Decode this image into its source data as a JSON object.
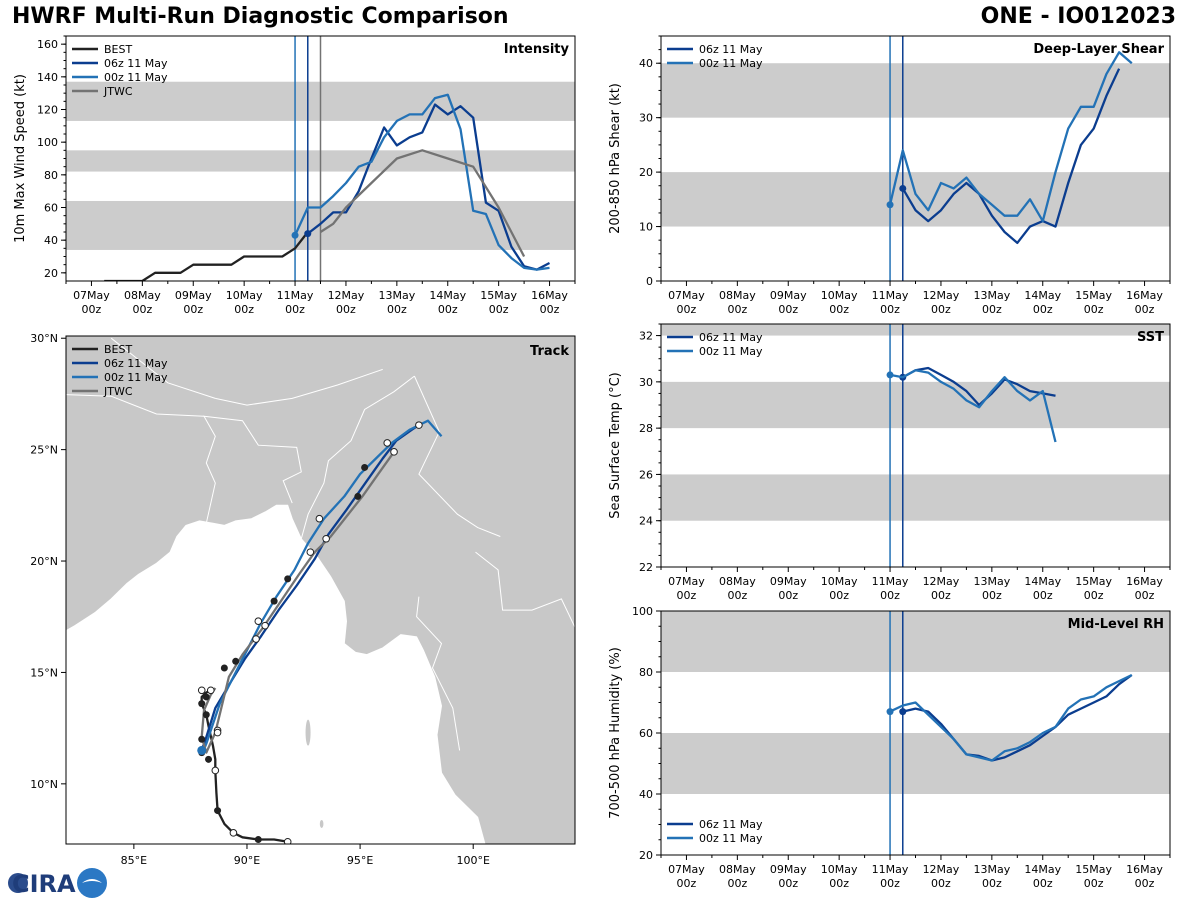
{
  "title_left": "HWRF Multi-Run Diagnostic Comparison",
  "title_right": "ONE - IO012023",
  "logo_text": "CIRA",
  "colors": {
    "best": "#222222",
    "run06": "#0b3d8f",
    "run00": "#2372b6",
    "jtwc": "#737373",
    "band": "#cccccc",
    "land": "#c8c8c8",
    "border": "#ffffff"
  },
  "legend": {
    "best": "BEST",
    "run06": "06z 11 May",
    "run00": "00z 11 May",
    "jtwc": "JTWC"
  },
  "time_ticks": [
    {
      "l1": "07May",
      "l2": "00z",
      "t": 0
    },
    {
      "l1": "08May",
      "l2": "00z",
      "t": 24
    },
    {
      "l1": "09May",
      "l2": "00z",
      "t": 48
    },
    {
      "l1": "10May",
      "l2": "00z",
      "t": 72
    },
    {
      "l1": "11May",
      "l2": "00z",
      "t": 96
    },
    {
      "l1": "12May",
      "l2": "00z",
      "t": 120
    },
    {
      "l1": "13May",
      "l2": "00z",
      "t": 144
    },
    {
      "l1": "14May",
      "l2": "00z",
      "t": 168
    },
    {
      "l1": "15May",
      "l2": "00z",
      "t": 192
    },
    {
      "l1": "16May",
      "l2": "00z",
      "t": 216
    }
  ],
  "chart_data": [
    {
      "type": "line",
      "id": "intensity",
      "title": "Intensity",
      "xlabel": "",
      "ylabel": "10m Max Wind Speed (kt)",
      "x_unit": "hours since 07 May 00z",
      "xlim": [
        -12,
        228
      ],
      "ylim": [
        15,
        165
      ],
      "yticks": [
        20,
        40,
        60,
        80,
        100,
        120,
        140,
        160
      ],
      "bands": [
        [
          34,
          64
        ],
        [
          82,
          95
        ],
        [
          113,
          137
        ]
      ],
      "vlines": [
        {
          "t": 96,
          "series": "run00"
        },
        {
          "t": 102,
          "series": "run06"
        },
        {
          "t": 108,
          "series": "jtwc"
        }
      ],
      "legend_keys": [
        "best",
        "run06",
        "run00",
        "jtwc"
      ],
      "series": [
        {
          "name": "BEST",
          "key": "best",
          "x": [
            6,
            12,
            18,
            24,
            30,
            36,
            42,
            48,
            54,
            60,
            66,
            72,
            78,
            84,
            90,
            96,
            102
          ],
          "y": [
            15,
            15,
            15,
            15,
            20,
            20,
            20,
            25,
            25,
            25,
            25,
            30,
            30,
            30,
            30,
            35,
            45
          ],
          "markers": []
        },
        {
          "name": "06z 11 May",
          "key": "run06",
          "x": [
            102,
            108,
            114,
            120,
            126,
            132,
            138,
            144,
            150,
            156,
            162,
            168,
            174,
            180,
            186,
            192,
            198,
            204,
            210,
            216
          ],
          "y": [
            44,
            50,
            57,
            57,
            70,
            90,
            109,
            98,
            103,
            106,
            123,
            117,
            122,
            115,
            63,
            58,
            36,
            24,
            22,
            26
          ],
          "markers": [
            {
              "x": 102,
              "y": 44
            }
          ]
        },
        {
          "name": "00z 11 May",
          "key": "run00",
          "x": [
            96,
            102,
            108,
            114,
            120,
            126,
            132,
            138,
            144,
            150,
            156,
            162,
            168,
            174,
            180,
            186,
            192,
            198,
            204,
            210,
            216
          ],
          "y": [
            43,
            60,
            60,
            67,
            75,
            85,
            88,
            103,
            113,
            117,
            117,
            127,
            129,
            108,
            58,
            56,
            37,
            29,
            23,
            22,
            23
          ],
          "markers": [
            {
              "x": 96,
              "y": 43
            }
          ]
        },
        {
          "name": "JTWC",
          "key": "jtwc",
          "x": [
            108,
            114,
            120,
            132,
            144,
            156,
            168,
            180,
            192,
            204
          ],
          "y": [
            45,
            50,
            60,
            75,
            90,
            95,
            90,
            85,
            60,
            30
          ],
          "markers": []
        }
      ]
    },
    {
      "type": "line",
      "id": "shear",
      "title": "Deep-Layer Shear",
      "xlabel": "",
      "ylabel": "200-850 hPa Shear (kt)",
      "x_unit": "hours since 07 May 00z",
      "xlim": [
        -12,
        228
      ],
      "ylim": [
        0,
        45
      ],
      "yticks": [
        0,
        10,
        20,
        30,
        40
      ],
      "bands": [
        [
          10,
          20
        ],
        [
          30,
          40
        ]
      ],
      "vlines": [
        {
          "t": 96,
          "series": "run00"
        },
        {
          "t": 102,
          "series": "run06"
        }
      ],
      "legend_keys": [
        "run06",
        "run00"
      ],
      "series": [
        {
          "name": "06z 11 May",
          "key": "run06",
          "x": [
            102,
            108,
            114,
            120,
            126,
            132,
            138,
            144,
            150,
            156,
            162,
            168,
            174,
            180,
            186,
            192,
            198,
            204
          ],
          "y": [
            17,
            13,
            11,
            13,
            16,
            18,
            16,
            12,
            9,
            7,
            10,
            11,
            10,
            18,
            25,
            28,
            34,
            39
          ],
          "markers": [
            {
              "x": 102,
              "y": 17
            }
          ]
        },
        {
          "name": "00z 11 May",
          "key": "run00",
          "x": [
            96,
            102,
            108,
            114,
            120,
            126,
            132,
            138,
            144,
            150,
            156,
            162,
            168,
            174,
            180,
            186,
            192,
            198,
            204,
            210
          ],
          "y": [
            14,
            24,
            16,
            13,
            18,
            17,
            19,
            16,
            14,
            12,
            12,
            15,
            11,
            20,
            28,
            32,
            32,
            38,
            42,
            40
          ],
          "markers": [
            {
              "x": 96,
              "y": 14
            }
          ]
        }
      ]
    },
    {
      "type": "line",
      "id": "sst",
      "title": "SST",
      "xlabel": "",
      "ylabel": "Sea Surface Temp (°C)",
      "x_unit": "hours since 07 May 00z",
      "xlim": [
        -12,
        228
      ],
      "ylim": [
        22,
        32.5
      ],
      "yticks": [
        22,
        24,
        26,
        28,
        30,
        32
      ],
      "bands": [
        [
          24,
          26
        ],
        [
          28,
          30
        ],
        [
          32,
          34
        ]
      ],
      "vlines": [
        {
          "t": 96,
          "series": "run00"
        },
        {
          "t": 102,
          "series": "run06"
        }
      ],
      "legend_keys": [
        "run06",
        "run00"
      ],
      "series": [
        {
          "name": "06z 11 May",
          "key": "run06",
          "x": [
            102,
            108,
            114,
            120,
            126,
            132,
            138,
            144,
            150,
            156,
            162,
            168,
            174
          ],
          "y": [
            30.2,
            30.5,
            30.6,
            30.3,
            30.0,
            29.6,
            29.0,
            29.5,
            30.1,
            29.9,
            29.6,
            29.5,
            29.4
          ],
          "markers": [
            {
              "x": 102,
              "y": 30.2
            }
          ]
        },
        {
          "name": "00z 11 May",
          "key": "run00",
          "x": [
            96,
            102,
            108,
            114,
            120,
            126,
            132,
            138,
            144,
            150,
            156,
            162,
            168,
            174
          ],
          "y": [
            30.3,
            30.2,
            30.5,
            30.4,
            30.0,
            29.7,
            29.2,
            28.9,
            29.6,
            30.2,
            29.6,
            29.2,
            29.6,
            27.4
          ],
          "markers": [
            {
              "x": 96,
              "y": 30.3
            }
          ]
        }
      ]
    },
    {
      "type": "line",
      "id": "rh",
      "title": "Mid-Level RH",
      "xlabel": "",
      "ylabel": "700-500 hPa Humidity (%)",
      "x_unit": "hours since 07 May 00z",
      "xlim": [
        -12,
        228
      ],
      "ylim": [
        20,
        100
      ],
      "yticks": [
        20,
        40,
        60,
        80,
        100
      ],
      "bands": [
        [
          40,
          60
        ],
        [
          80,
          100
        ]
      ],
      "vlines": [
        {
          "t": 96,
          "series": "run00"
        },
        {
          "t": 102,
          "series": "run06"
        }
      ],
      "legend_keys": [
        "run06",
        "run00"
      ],
      "legend_position": "bottom-left",
      "series": [
        {
          "name": "06z 11 May",
          "key": "run06",
          "x": [
            102,
            108,
            114,
            120,
            126,
            132,
            138,
            144,
            150,
            156,
            162,
            168,
            174,
            180,
            186,
            192,
            198,
            204,
            210
          ],
          "y": [
            67,
            68,
            67,
            63,
            58,
            53,
            52.5,
            51,
            52,
            54,
            56,
            59,
            62,
            66,
            68,
            70,
            72,
            76,
            79
          ],
          "markers": [
            {
              "x": 102,
              "y": 67
            }
          ]
        },
        {
          "name": "00z 11 May",
          "key": "run00",
          "x": [
            96,
            102,
            108,
            114,
            120,
            126,
            132,
            138,
            144,
            150,
            156,
            162,
            168,
            174,
            180,
            186,
            192,
            198,
            204,
            210
          ],
          "y": [
            67,
            69,
            70,
            66,
            62,
            58,
            53,
            52,
            51,
            54,
            55,
            57,
            60,
            62,
            68,
            71,
            72,
            75,
            77,
            79
          ],
          "markers": [
            {
              "x": 96,
              "y": 67
            }
          ]
        }
      ]
    },
    {
      "type": "scatter",
      "id": "track",
      "title": "Track",
      "xlabel": "",
      "ylabel": "",
      "xlim": [
        82,
        104.5
      ],
      "ylim": [
        7.3,
        30.1
      ],
      "xticks": [
        {
          "v": 85,
          "label": "85°E"
        },
        {
          "v": 90,
          "label": "90°E"
        },
        {
          "v": 95,
          "label": "95°E"
        },
        {
          "v": 100,
          "label": "100°E"
        }
      ],
      "yticks": [
        {
          "v": 10,
          "label": "10°N"
        },
        {
          "v": 15,
          "label": "15°N"
        },
        {
          "v": 20,
          "label": "20°N"
        },
        {
          "v": 25,
          "label": "25°N"
        },
        {
          "v": 30,
          "label": "30°N"
        }
      ],
      "legend_keys": [
        "best",
        "run06",
        "run00",
        "jtwc"
      ],
      "series": [
        {
          "name": "BEST",
          "key": "best",
          "lon": [
            91.8,
            91.2,
            90.5,
            89.8,
            89.4,
            89.0,
            88.7,
            88.65,
            88.6,
            88.6,
            88.5,
            88.3,
            88.2,
            88.0,
            88.0,
            88.2,
            88.4
          ],
          "lat": [
            7.4,
            7.5,
            7.5,
            7.6,
            7.8,
            8.2,
            8.8,
            9.6,
            10.6,
            11.1,
            11.7,
            12.6,
            13.1,
            13.6,
            13.9,
            14.1,
            14.2
          ],
          "open": [
            [
              91.8,
              7.4
            ],
            [
              89.4,
              7.8
            ],
            [
              88.6,
              10.6
            ],
            [
              88.4,
              14.2
            ],
            [
              88.0,
              14.2
            ]
          ],
          "filled": [
            [
              90.5,
              7.5
            ],
            [
              88.7,
              8.8
            ],
            [
              88.3,
              11.1
            ],
            [
              88.2,
              13.1
            ],
            [
              88.0,
              13.6
            ],
            [
              88.2,
              13.9
            ]
          ]
        },
        {
          "name": "06z 11 May",
          "key": "run06",
          "lon": [
            88.0,
            88.2,
            88.6,
            89.3,
            89.9,
            90.6,
            91.4,
            92.2,
            93.0,
            93.6,
            94.4,
            95.3,
            96.0,
            96.6,
            97.3,
            97.6
          ],
          "lat": [
            11.5,
            12.1,
            13.4,
            14.6,
            15.6,
            16.6,
            17.8,
            18.9,
            20.1,
            21.2,
            22.3,
            23.6,
            24.6,
            25.4,
            25.9,
            26.1
          ],
          "open": [
            [
              97.6,
              26.1
            ]
          ],
          "filled": [
            [
              88.0,
              11.5
            ],
            [
              89.0,
              15.2
            ],
            [
              89.5,
              15.5
            ],
            [
              91.2,
              18.2
            ],
            [
              91.8,
              19.2
            ],
            [
              95.2,
              24.2
            ]
          ]
        },
        {
          "name": "00z 11 May",
          "key": "run00",
          "lon": [
            88.0,
            88.2,
            88.4,
            88.8,
            89.4,
            90.0,
            90.6,
            91.3,
            92.1,
            92.7,
            93.4,
            94.3,
            95.0,
            95.7,
            96.4,
            97.2,
            98.0,
            98.6
          ],
          "lat": [
            11.3,
            11.8,
            12.4,
            13.6,
            14.8,
            16.0,
            17.2,
            18.4,
            19.6,
            20.8,
            21.9,
            22.9,
            23.9,
            24.6,
            25.3,
            25.9,
            26.3,
            25.6
          ],
          "open": [
            [
              88.7,
              12.4
            ],
            [
              90.5,
              17.3
            ],
            [
              93.2,
              21.9
            ],
            [
              96.2,
              25.3
            ]
          ],
          "filled": [
            [
              88.0,
              11.4
            ]
          ]
        },
        {
          "name": "JTWC",
          "key": "jtwc",
          "lon": [
            88.6,
            88.4,
            88.1,
            88.0,
            88.2,
            88.6,
            89.2,
            89.8,
            90.7,
            91.5,
            92.3,
            93.0,
            93.7,
            94.4,
            95.1,
            95.8,
            96.5
          ],
          "lat": [
            14.3,
            14.0,
            13.3,
            12.1,
            11.4,
            12.3,
            14.8,
            15.8,
            17.0,
            18.2,
            19.4,
            20.4,
            21.1,
            22.0,
            22.9,
            23.9,
            24.9
          ],
          "open": [
            [
              88.7,
              12.3
            ],
            [
              90.4,
              16.5
            ],
            [
              90.8,
              17.1
            ],
            [
              92.8,
              20.4
            ],
            [
              93.5,
              21.0
            ],
            [
              96.5,
              24.9
            ]
          ],
          "filled": [
            [
              88.0,
              12.0
            ],
            [
              94.9,
              22.9
            ]
          ]
        }
      ]
    }
  ]
}
